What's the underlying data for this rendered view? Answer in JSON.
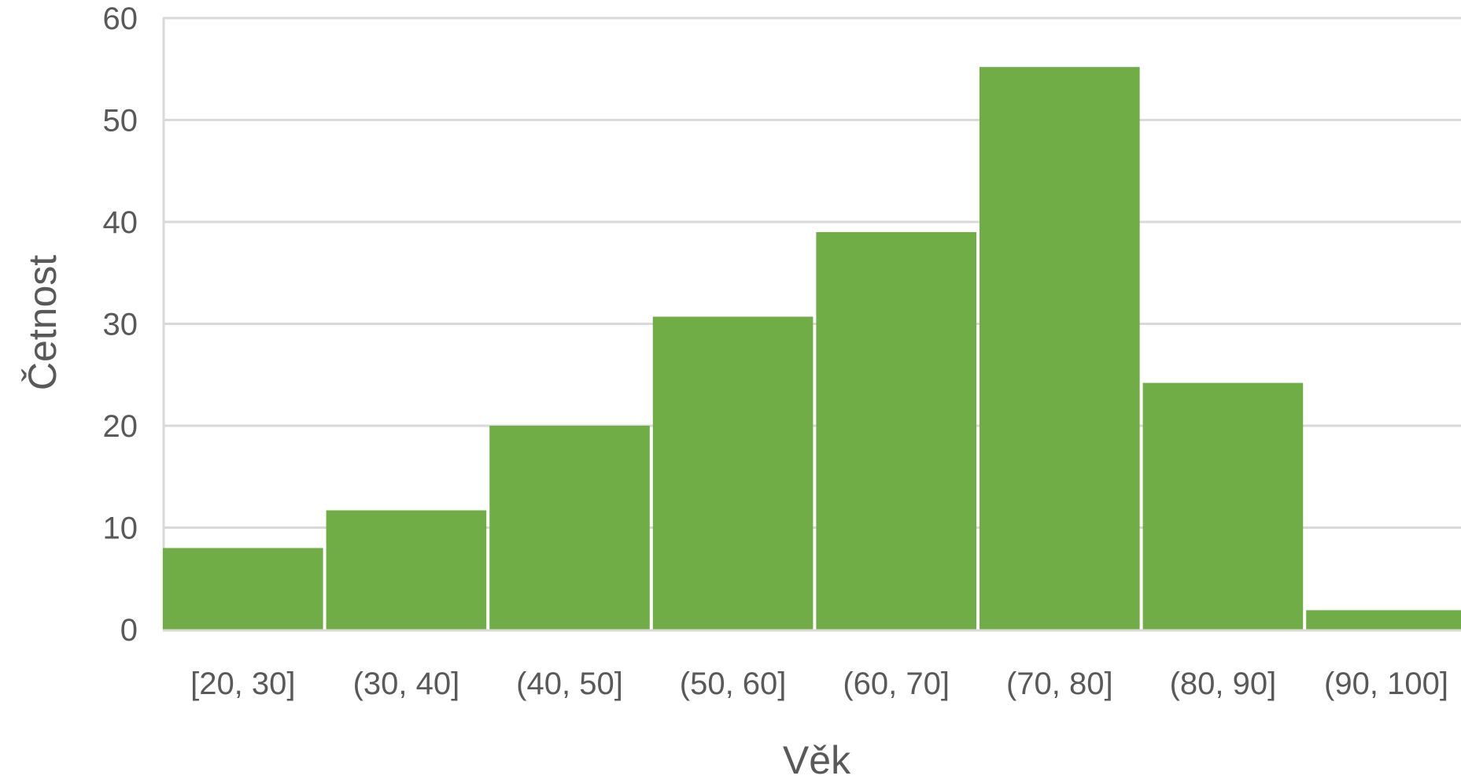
{
  "chart_data": {
    "type": "bar",
    "title": "",
    "xlabel": "Věk",
    "ylabel": "Četnost",
    "categories": [
      "[20, 30]",
      "(30, 40]",
      "(40, 50]",
      "(50, 60]",
      "(60, 70]",
      "(70, 80]",
      "(80, 90]",
      "(90, 100]"
    ],
    "values": [
      8,
      11.7,
      20,
      30.7,
      39,
      55.2,
      24.2,
      1.9
    ],
    "ylim": [
      0,
      60
    ],
    "yticks": [
      0,
      10,
      20,
      30,
      40,
      50,
      60
    ],
    "grid": true,
    "legend": "none",
    "colors": {
      "bar": "#70AD47",
      "grid": "#D9D9D9",
      "axis": "#D9D9D9",
      "text": "#595959"
    }
  }
}
